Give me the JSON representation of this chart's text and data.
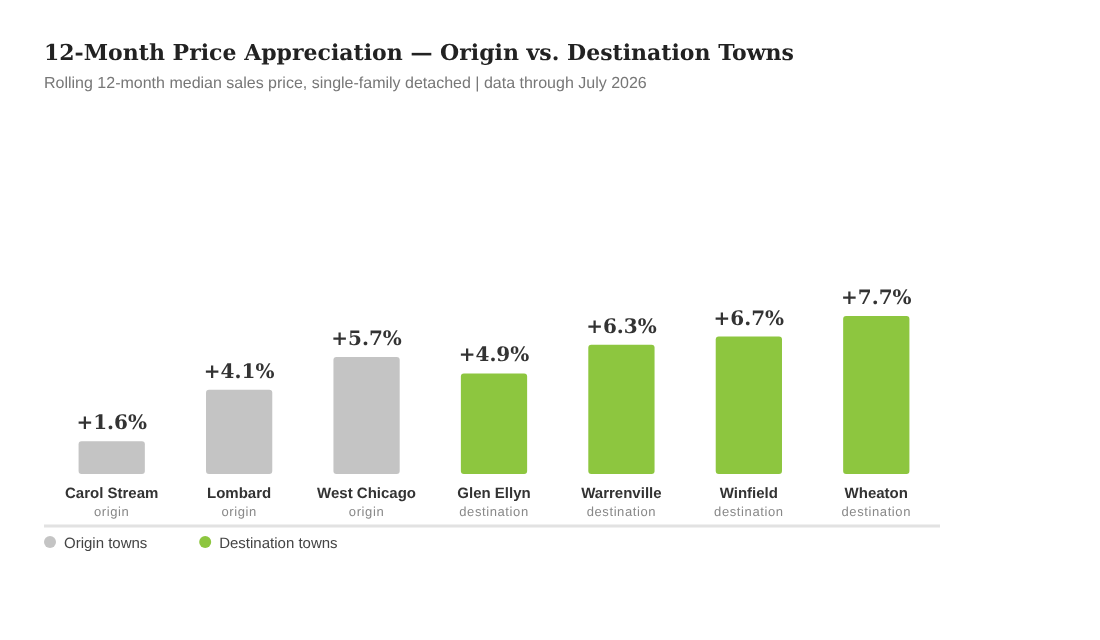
{
  "chart_data": {
    "type": "bar",
    "title": "12-Month Price Appreciation — Origin vs. Destination Towns",
    "subtitle": "Rolling 12-month median sales price, single-family detached | data through July 2026",
    "categories": [
      "Carol Stream",
      "Lombard",
      "West Chicago",
      "Glen Ellyn",
      "Warrenville",
      "Winfield",
      "Wheaton"
    ],
    "stacked": true,
    "series": [
      {
        "name": "Origin towns",
        "color": "#c4c4c4",
        "values": [
          1.6,
          4.1,
          5.7,
          null,
          null,
          null,
          null
        ],
        "value_labels": [
          "+1.6%",
          "+4.1%",
          "+5.7%",
          null,
          null,
          null,
          null
        ]
      },
      {
        "name": "Destination towns",
        "color": "#8dc63f",
        "values": [
          null,
          null,
          null,
          4.9,
          6.3,
          6.7,
          7.7
        ],
        "value_labels": [
          null,
          null,
          null,
          "+4.9%",
          "+6.3%",
          "+6.7%",
          "+7.7%"
        ]
      }
    ],
    "annotations": [
      "origin",
      "origin",
      "origin",
      "destination",
      "destination",
      "destination",
      "destination"
    ],
    "legend": "bottom left"
  }
}
